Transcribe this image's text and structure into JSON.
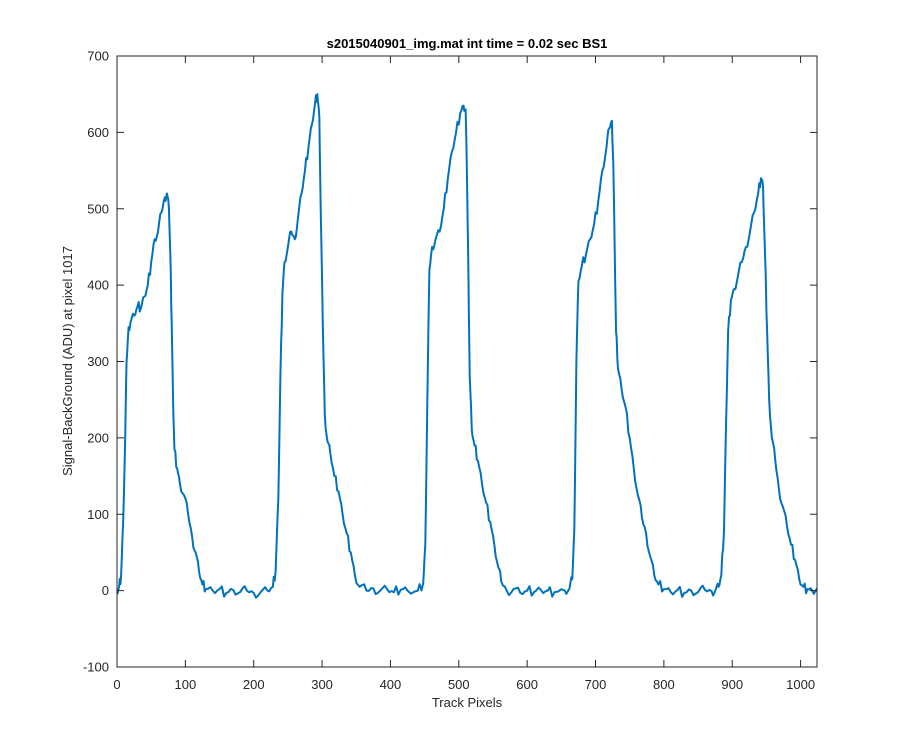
{
  "chart_data": {
    "type": "line",
    "title": "s2015040901_img.mat int time = 0.02 sec   BS1",
    "xlabel": "Track Pixels",
    "ylabel": "Signal-BackGround (ADU) at pixel 1017",
    "xlim": [
      0,
      1024
    ],
    "ylim": [
      -100,
      700
    ],
    "xticks": [
      0,
      100,
      200,
      300,
      400,
      500,
      600,
      700,
      800,
      900,
      1000
    ],
    "yticks": [
      -100,
      0,
      100,
      200,
      300,
      400,
      500,
      600,
      700
    ],
    "grid": false,
    "line_color": "#0072BD",
    "series": [
      {
        "points": [
          [
            0,
            -2
          ],
          [
            3,
            5
          ],
          [
            6,
            20
          ],
          [
            9,
            90
          ],
          [
            12,
            200
          ],
          [
            14,
            300
          ],
          [
            17,
            345
          ],
          [
            20,
            352
          ],
          [
            25,
            360
          ],
          [
            30,
            372
          ],
          [
            35,
            370
          ],
          [
            40,
            385
          ],
          [
            45,
            400
          ],
          [
            50,
            430
          ],
          [
            55,
            460
          ],
          [
            60,
            470
          ],
          [
            65,
            495
          ],
          [
            70,
            515
          ],
          [
            73,
            520
          ],
          [
            76,
            500
          ],
          [
            78,
            440
          ],
          [
            80,
            350
          ],
          [
            82,
            250
          ],
          [
            84,
            185
          ],
          [
            88,
            160
          ],
          [
            92,
            140
          ],
          [
            98,
            125
          ],
          [
            104,
            100
          ],
          [
            110,
            70
          ],
          [
            115,
            50
          ],
          [
            120,
            25
          ],
          [
            125,
            8
          ],
          [
            130,
            2
          ],
          [
            140,
            0
          ],
          [
            150,
            2
          ],
          [
            160,
            -3
          ],
          [
            170,
            1
          ],
          [
            180,
            -2
          ],
          [
            190,
            0
          ],
          [
            200,
            -3
          ],
          [
            210,
            -2
          ],
          [
            220,
            0
          ],
          [
            228,
            5
          ],
          [
            232,
            25
          ],
          [
            236,
            120
          ],
          [
            239,
            280
          ],
          [
            242,
            390
          ],
          [
            245,
            430
          ],
          [
            250,
            450
          ],
          [
            255,
            470
          ],
          [
            260,
            460
          ],
          [
            265,
            490
          ],
          [
            270,
            520
          ],
          [
            275,
            550
          ],
          [
            280,
            580
          ],
          [
            285,
            610
          ],
          [
            290,
            640
          ],
          [
            293,
            650
          ],
          [
            296,
            620
          ],
          [
            298,
            500
          ],
          [
            301,
            350
          ],
          [
            304,
            230
          ],
          [
            308,
            195
          ],
          [
            312,
            180
          ],
          [
            318,
            150
          ],
          [
            324,
            130
          ],
          [
            330,
            100
          ],
          [
            336,
            75
          ],
          [
            342,
            50
          ],
          [
            348,
            20
          ],
          [
            355,
            5
          ],
          [
            365,
            0
          ],
          [
            375,
            3
          ],
          [
            385,
            0
          ],
          [
            395,
            2
          ],
          [
            405,
            -2
          ],
          [
            415,
            1
          ],
          [
            425,
            0
          ],
          [
            440,
            0
          ],
          [
            448,
            10
          ],
          [
            451,
            60
          ],
          [
            454,
            250
          ],
          [
            457,
            420
          ],
          [
            461,
            450
          ],
          [
            466,
            460
          ],
          [
            472,
            470
          ],
          [
            478,
            500
          ],
          [
            484,
            540
          ],
          [
            490,
            575
          ],
          [
            496,
            600
          ],
          [
            502,
            625
          ],
          [
            507,
            635
          ],
          [
            510,
            630
          ],
          [
            512,
            540
          ],
          [
            514,
            420
          ],
          [
            516,
            280
          ],
          [
            519,
            210
          ],
          [
            523,
            190
          ],
          [
            528,
            170
          ],
          [
            534,
            140
          ],
          [
            540,
            115
          ],
          [
            546,
            90
          ],
          [
            552,
            60
          ],
          [
            558,
            30
          ],
          [
            562,
            12
          ],
          [
            570,
            0
          ],
          [
            580,
            2
          ],
          [
            590,
            -3
          ],
          [
            600,
            0
          ],
          [
            610,
            -2
          ],
          [
            620,
            1
          ],
          [
            630,
            0
          ],
          [
            640,
            -2
          ],
          [
            655,
            0
          ],
          [
            662,
            3
          ],
          [
            666,
            15
          ],
          [
            669,
            80
          ],
          [
            672,
            300
          ],
          [
            675,
            405
          ],
          [
            680,
            425
          ],
          [
            686,
            440
          ],
          [
            692,
            460
          ],
          [
            698,
            480
          ],
          [
            704,
            510
          ],
          [
            710,
            550
          ],
          [
            716,
            580
          ],
          [
            720,
            605
          ],
          [
            724,
            615
          ],
          [
            726,
            560
          ],
          [
            728,
            450
          ],
          [
            730,
            340
          ],
          [
            733,
            290
          ],
          [
            738,
            265
          ],
          [
            744,
            240
          ],
          [
            750,
            200
          ],
          [
            756,
            160
          ],
          [
            762,
            125
          ],
          [
            768,
            95
          ],
          [
            774,
            75
          ],
          [
            780,
            45
          ],
          [
            786,
            20
          ],
          [
            792,
            8
          ],
          [
            800,
            2
          ],
          [
            810,
            -2
          ],
          [
            820,
            1
          ],
          [
            830,
            -3
          ],
          [
            840,
            0
          ],
          [
            850,
            -2
          ],
          [
            860,
            1
          ],
          [
            870,
            -1
          ],
          [
            876,
            2
          ],
          [
            880,
            5
          ],
          [
            884,
            20
          ],
          [
            888,
            80
          ],
          [
            891,
            220
          ],
          [
            894,
            340
          ],
          [
            898,
            380
          ],
          [
            903,
            395
          ],
          [
            908,
            410
          ],
          [
            914,
            430
          ],
          [
            920,
            450
          ],
          [
            926,
            470
          ],
          [
            932,
            495
          ],
          [
            938,
            520
          ],
          [
            942,
            540
          ],
          [
            945,
            530
          ],
          [
            948,
            440
          ],
          [
            951,
            340
          ],
          [
            954,
            250
          ],
          [
            958,
            200
          ],
          [
            963,
            170
          ],
          [
            968,
            135
          ],
          [
            974,
            110
          ],
          [
            980,
            85
          ],
          [
            986,
            60
          ],
          [
            992,
            40
          ],
          [
            998,
            15
          ],
          [
            1004,
            5
          ],
          [
            1010,
            2
          ],
          [
            1017,
            0
          ],
          [
            1024,
            3
          ]
        ]
      }
    ]
  }
}
